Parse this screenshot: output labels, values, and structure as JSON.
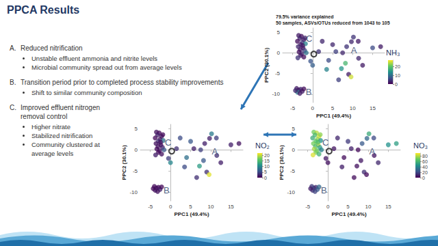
{
  "slide": {
    "title": "PPCA Results",
    "groups": [
      {
        "label": "A.",
        "text": "Reduced nitrification",
        "bullets": [
          "Unstable effluent ammonia and nitrite levels",
          "Microbial community spread out from average levels"
        ]
      },
      {
        "label": "B.",
        "text": "Transition period prior to completed process stability improvements",
        "bullets": [
          "Shift to similar community composition"
        ]
      },
      {
        "label": "C.",
        "text": "Improved effluent nitrogen removal control",
        "bullets": [
          "Higher nitrate",
          "Stabilized nitrification",
          "Community clustered at average levels"
        ]
      }
    ]
  },
  "chart_data": [
    {
      "type": "scatter",
      "title": "79.5% variance explained",
      "subtitle": "50 samples, ASVs/OTUs reduced from 1043 to 105",
      "x_label": "PPC1 (49.4%)",
      "y_label": "PPC2 (30.1%)",
      "xlim": [
        -7.5,
        18
      ],
      "xticks": [
        -5,
        0,
        5,
        10,
        15
      ],
      "ylim": [
        -12,
        6
      ],
      "yticks": [
        -10,
        -5,
        0,
        5
      ],
      "grid": false,
      "marker": "circle",
      "x": [
        -3.5,
        -2.8,
        -3.2,
        -2.2,
        -3.8,
        -2.6,
        -3.0,
        -1.8,
        -3.6,
        -2.4,
        -3.1,
        -2.0,
        -3.4,
        -2.7,
        -1.6,
        -3.0,
        -2.2,
        -3.7,
        -2.5,
        -1.9,
        -4.0,
        -3.5,
        -3.0,
        -2.6,
        -3.8,
        -2.2,
        -3.2,
        -4.3,
        1.5,
        2.4,
        4.0,
        5.8,
        7.5,
        7.2,
        8.2,
        9.0,
        9.6,
        9.7,
        10.2,
        11.4,
        11.5,
        15.0,
        17.0,
        0.0,
        3.5,
        6.5,
        12.5,
        5.0,
        -0.5,
        8.5
      ],
      "y": [
        4.2,
        4.0,
        3.5,
        3.2,
        2.8,
        2.5,
        2.0,
        2.2,
        1.5,
        1.2,
        0.8,
        0.6,
        0.2,
        -0.2,
        0.0,
        -0.6,
        -1.0,
        -1.2,
        1.8,
        3.6,
        -8.6,
        -9.0,
        -8.8,
        -9.3,
        -9.5,
        -8.7,
        -9.8,
        -9.1,
        0.3,
        2.8,
        -1.8,
        0.3,
        0.0,
        -3.8,
        -2.5,
        -5.2,
        -5.8,
        2.7,
        3.8,
        2.8,
        -1.3,
        1.2,
        1.5,
        -3.0,
        -4.0,
        -6.5,
        -3.0,
        2.0,
        -2.0,
        1.5
      ],
      "color_values": [
        2,
        1,
        3,
        2,
        1,
        4,
        2,
        12,
        3,
        1,
        2,
        5,
        1,
        3,
        10,
        2,
        1,
        4,
        2,
        3,
        2,
        1,
        3,
        2,
        11,
        1,
        2,
        3,
        4,
        3,
        6,
        5,
        3,
        14,
        18,
        2,
        25,
        3,
        4,
        2,
        3,
        6,
        2,
        8,
        12,
        5,
        2,
        3,
        7,
        4
      ],
      "colorbar": {
        "title": "NH₃",
        "range": [
          0,
          27
        ],
        "ticks": [
          0,
          10,
          20
        ]
      },
      "centroid": [
        0.3,
        -0.3
      ],
      "annotations": [
        {
          "text": "A",
          "x": 10.3,
          "y": 0.6
        },
        {
          "text": "B",
          "x": -1.0,
          "y": -9.5
        },
        {
          "text": "C",
          "x": -0.9,
          "y": 3.4
        }
      ]
    },
    {
      "type": "scatter",
      "x_label": "PPC1 (49.4%)",
      "y_label": "PPC2 (30.1%)",
      "xlim": [
        -7.5,
        18
      ],
      "xticks": [
        -5,
        0,
        5,
        10,
        15
      ],
      "ylim": [
        -12,
        6
      ],
      "yticks": [
        -10,
        -5,
        0,
        5
      ],
      "grid": false,
      "marker": "circle",
      "x": [
        -3.5,
        -2.8,
        -3.2,
        -2.2,
        -3.8,
        -2.6,
        -3.0,
        -1.8,
        -3.6,
        -2.4,
        -3.1,
        -2.0,
        -3.4,
        -2.7,
        -1.6,
        -3.0,
        -2.2,
        -3.7,
        -2.5,
        -1.9,
        -4.0,
        -3.5,
        -3.0,
        -2.6,
        -3.8,
        -2.2,
        -3.2,
        -4.3,
        1.5,
        2.4,
        4.0,
        5.8,
        7.5,
        7.2,
        8.2,
        9.0,
        9.6,
        9.7,
        10.2,
        11.4,
        11.5,
        15.0,
        17.0,
        0.0,
        3.5,
        6.5,
        12.5,
        5.0,
        -0.5,
        8.5
      ],
      "y": [
        4.2,
        4.0,
        3.5,
        3.2,
        2.8,
        2.5,
        2.0,
        2.2,
        1.5,
        1.2,
        0.8,
        0.6,
        0.2,
        -0.2,
        0.0,
        -0.6,
        -1.0,
        -1.2,
        1.8,
        3.6,
        -8.6,
        -9.0,
        -8.8,
        -9.3,
        -9.5,
        -8.7,
        -9.8,
        -9.1,
        0.3,
        2.8,
        -1.8,
        0.3,
        0.0,
        -3.8,
        -2.5,
        -5.2,
        -5.8,
        2.7,
        3.8,
        2.8,
        -1.3,
        1.2,
        1.5,
        -3.0,
        -4.0,
        -6.5,
        -3.0,
        2.0,
        -2.0,
        1.5
      ],
      "color_values": [
        1,
        0.5,
        2,
        1,
        0.5,
        1,
        3,
        8,
        1,
        0.5,
        1,
        2,
        0.5,
        1,
        6,
        0.5,
        1,
        2,
        1,
        0.5,
        0.5,
        1,
        0.5,
        2,
        1,
        0.5,
        1,
        0.5,
        3,
        5,
        8,
        2,
        4,
        12,
        6,
        3,
        21,
        2,
        9,
        4,
        3,
        2,
        1,
        10,
        5,
        3,
        2,
        6,
        4,
        2
      ],
      "colorbar": {
        "title": "NO₂",
        "range": [
          0,
          22
        ],
        "ticks": [
          0,
          5,
          10,
          15,
          20
        ]
      },
      "centroid": [
        0.3,
        -0.3
      ],
      "annotations": [
        {
          "text": "A",
          "x": 11.0,
          "y": -0.3
        },
        {
          "text": "B",
          "x": -1.0,
          "y": -9.5
        },
        {
          "text": "C",
          "x": -0.6,
          "y": 1.8
        }
      ]
    },
    {
      "type": "scatter",
      "x_label": "PPC1 (49.4%)",
      "y_label": "PPC2 (30.1%)",
      "xlim": [
        -7.5,
        18
      ],
      "xticks": [
        -5,
        0,
        5,
        10,
        15
      ],
      "ylim": [
        -12,
        6
      ],
      "yticks": [
        -10,
        -5,
        0,
        5
      ],
      "grid": false,
      "marker": "circle",
      "x": [
        -3.5,
        -2.8,
        -3.2,
        -2.2,
        -3.8,
        -2.6,
        -3.0,
        -1.8,
        -3.6,
        -2.4,
        -3.1,
        -2.0,
        -3.4,
        -2.7,
        -1.6,
        -3.0,
        -2.2,
        -3.7,
        -2.5,
        -1.9,
        -4.0,
        -3.5,
        -3.0,
        -2.6,
        -3.8,
        -2.2,
        -3.2,
        -4.3,
        1.5,
        2.4,
        4.0,
        5.8,
        7.5,
        7.2,
        8.2,
        9.0,
        9.6,
        9.7,
        10.2,
        11.4,
        11.5,
        15.0,
        17.0,
        0.0,
        3.5,
        6.5,
        12.5,
        5.0,
        -0.5,
        8.5
      ],
      "y": [
        4.2,
        4.0,
        3.5,
        3.2,
        2.8,
        2.5,
        2.0,
        2.2,
        1.5,
        1.2,
        0.8,
        0.6,
        0.2,
        -0.2,
        0.0,
        -0.6,
        -1.0,
        -1.2,
        1.8,
        3.6,
        -8.6,
        -9.0,
        -8.8,
        -9.3,
        -9.5,
        -8.7,
        -9.8,
        -9.1,
        0.3,
        2.8,
        -1.8,
        0.3,
        0.0,
        -3.8,
        -2.5,
        -5.2,
        -5.8,
        2.7,
        3.8,
        2.8,
        -1.3,
        1.2,
        1.5,
        -3.0,
        -4.0,
        -6.5,
        -3.0,
        2.0,
        -2.0,
        1.5
      ],
      "color_values": [
        70,
        80,
        60,
        85,
        55,
        75,
        65,
        45,
        70,
        82,
        60,
        50,
        78,
        68,
        40,
        72,
        58,
        85,
        62,
        74,
        15,
        20,
        10,
        25,
        12,
        30,
        18,
        8,
        5,
        10,
        3,
        8,
        2,
        4,
        6,
        12,
        2,
        30,
        55,
        20,
        5,
        45,
        50,
        4,
        8,
        3,
        10,
        15,
        6,
        25
      ],
      "colorbar": {
        "title": "NO₃",
        "range": [
          0,
          90
        ],
        "ticks": [
          0,
          20,
          40,
          60,
          80
        ]
      },
      "centroid": [
        0.3,
        -0.3
      ],
      "annotations": [
        {
          "text": "A",
          "x": 11.0,
          "y": -0.3
        },
        {
          "text": "B",
          "x": -1.0,
          "y": -9.5
        },
        {
          "text": "C",
          "x": -0.6,
          "y": 1.8
        }
      ]
    }
  ]
}
